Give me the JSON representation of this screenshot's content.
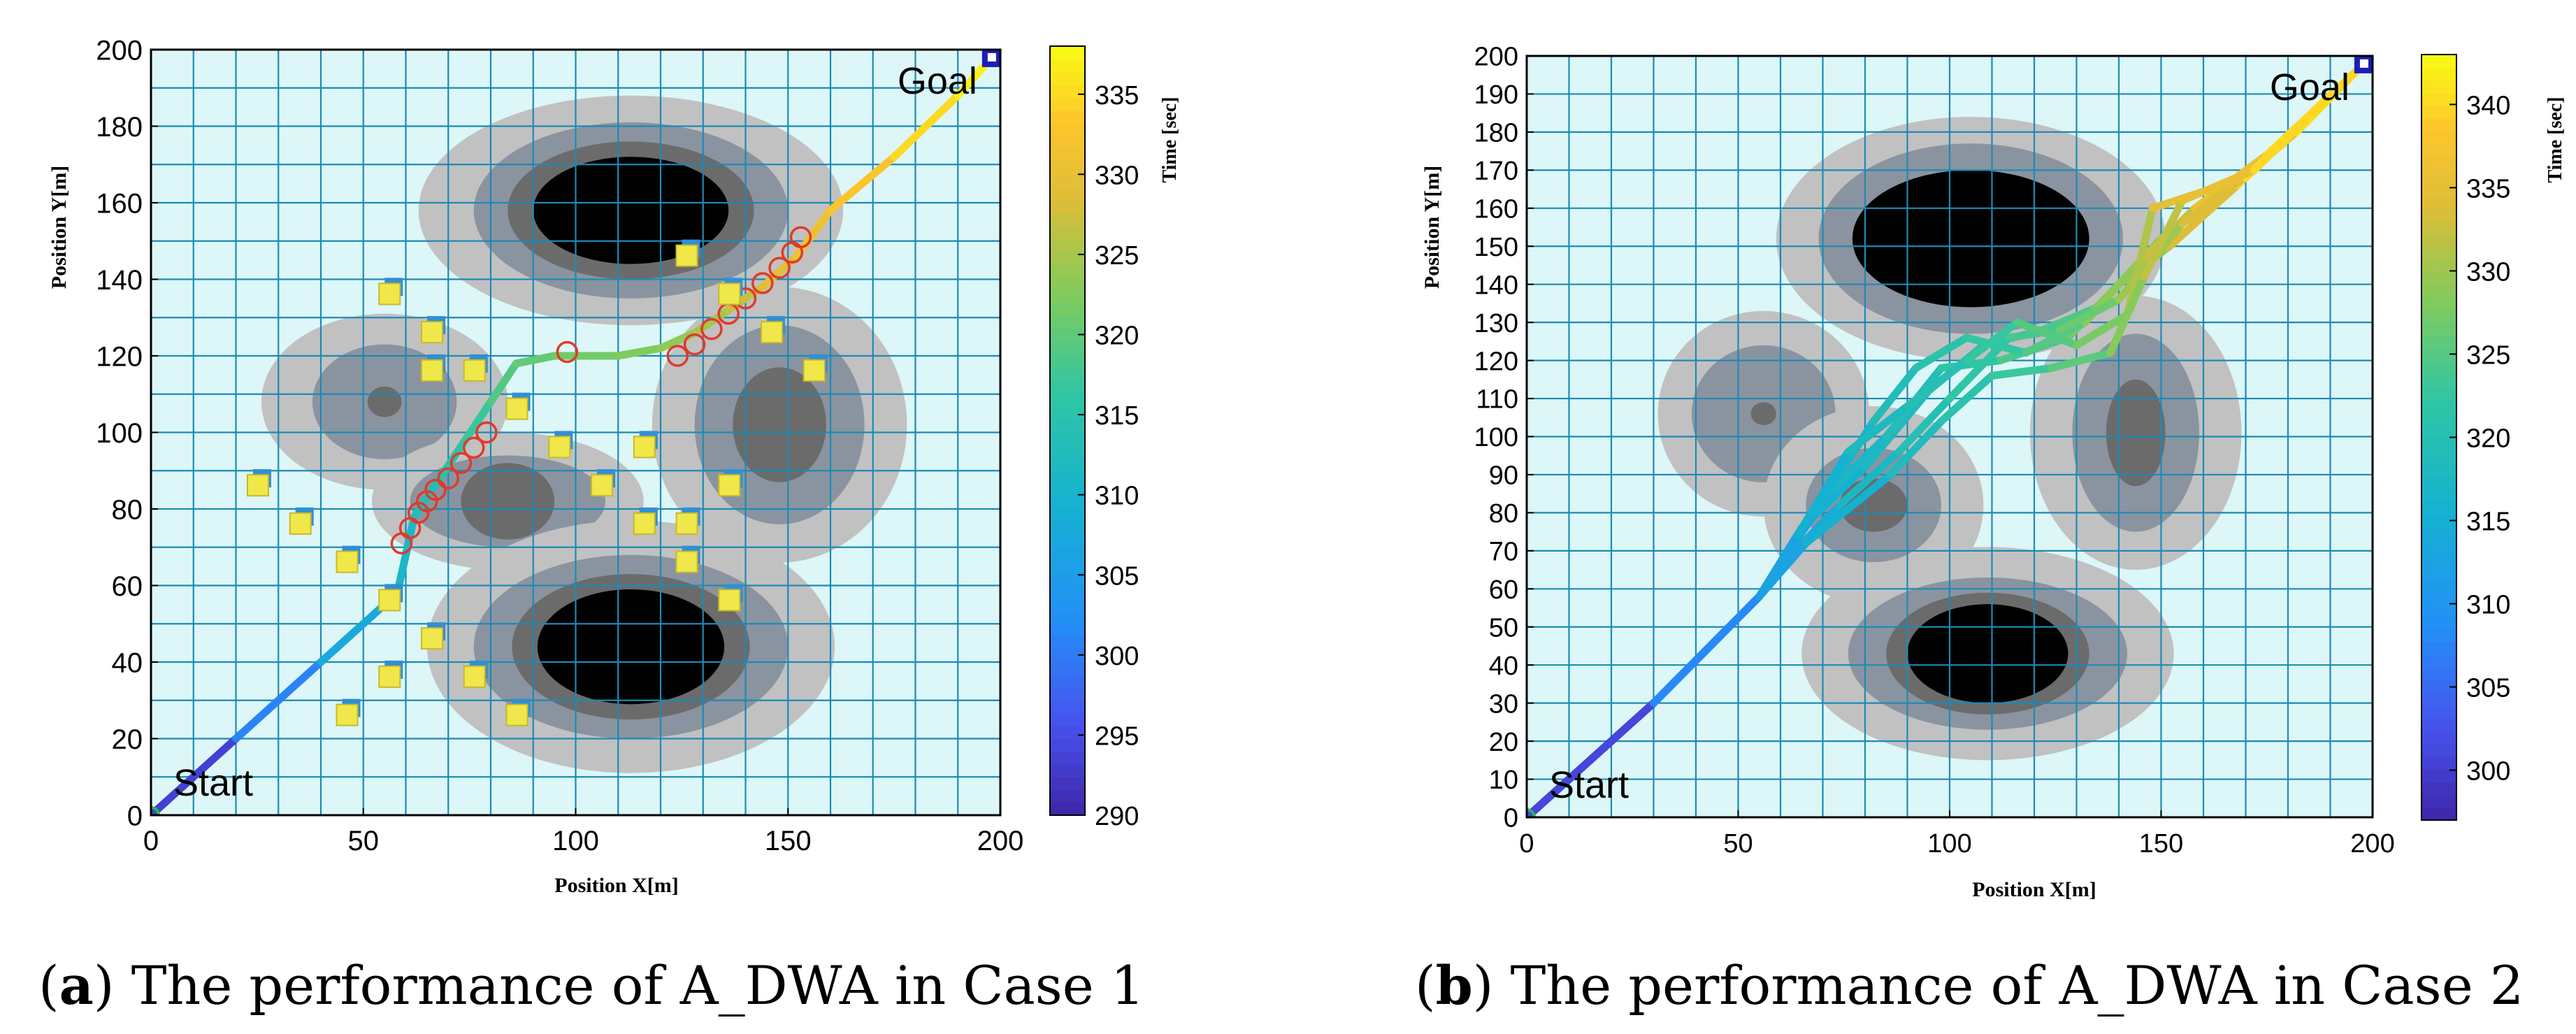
{
  "chart_data": [
    {
      "type": "line",
      "panel": "a",
      "caption_label": "a",
      "caption_text": "The performance of A_DWA in Case 1",
      "title": "",
      "xlabel": "Position X[m]",
      "ylabel": "Position Y[m]",
      "xlim": [
        0,
        200
      ],
      "ylim": [
        0,
        200
      ],
      "xticks": [
        0,
        50,
        100,
        150,
        200
      ],
      "yticks": [
        0,
        20,
        40,
        60,
        80,
        100,
        120,
        140,
        160,
        180,
        200
      ],
      "grid": true,
      "start_label": "Start",
      "goal_label": "Goal",
      "start": [
        0,
        0
      ],
      "goal": [
        198,
        198
      ],
      "colorbar": {
        "label": "Time [sec]",
        "range": [
          290,
          338
        ],
        "ticks": [
          290,
          295,
          300,
          305,
          310,
          315,
          320,
          325,
          330,
          335
        ]
      },
      "obstacles": [
        {
          "name": "upper-large",
          "x": 113,
          "y": 158,
          "levels": [
            [
              50,
              30
            ],
            [
              37,
              23
            ],
            [
              29,
              18
            ],
            [
              23,
              14
            ]
          ]
        },
        {
          "name": "left-small",
          "x": 55,
          "y": 108,
          "levels": [
            [
              29,
              23
            ],
            [
              17,
              15
            ],
            [
              4,
              4
            ]
          ]
        },
        {
          "name": "center-mid",
          "x": 84,
          "y": 82,
          "levels": [
            [
              32,
              18
            ],
            [
              23,
              12
            ],
            [
              11,
              10
            ]
          ]
        },
        {
          "name": "right-mid",
          "x": 148,
          "y": 102,
          "levels": [
            [
              30,
              36
            ],
            [
              20,
              26
            ],
            [
              11,
              15
            ]
          ]
        },
        {
          "name": "lower-large",
          "x": 113,
          "y": 44,
          "levels": [
            [
              48,
              33
            ],
            [
              37,
              24
            ],
            [
              28,
              19
            ],
            [
              22,
              15
            ]
          ]
        }
      ],
      "series": [
        {
          "name": "A_DWA path",
          "x": [
            0,
            20,
            40,
            58,
            62,
            68,
            74,
            80,
            86,
            95,
            110,
            120,
            128,
            136,
            144,
            152,
            160,
            175,
            190,
            198
          ],
          "y": [
            0,
            20,
            40,
            58,
            78,
            88,
            98,
            108,
            118,
            120,
            120,
            122,
            126,
            132,
            138,
            146,
            158,
            172,
            188,
            198
          ],
          "t": [
            290,
            297,
            305,
            310,
            312,
            314,
            316,
            318,
            320,
            321,
            322,
            323,
            324,
            326,
            328,
            330,
            332,
            334,
            336,
            338
          ]
        }
      ],
      "predicted_markers": {
        "x": [
          59,
          61,
          63,
          65,
          67,
          70,
          73,
          76,
          79,
          98,
          124,
          128,
          132,
          136,
          140,
          144,
          148,
          151,
          153
        ],
        "y": [
          71,
          75,
          79,
          82,
          85,
          88,
          92,
          96,
          100,
          121,
          120,
          123,
          127,
          131,
          135,
          139,
          143,
          147,
          151
        ]
      },
      "dynamic_obstacles": {
        "x": [
          26,
          36,
          47,
          57,
          57,
          67,
          77,
          87,
          97,
          107,
          117,
          127,
          137,
          147,
          157,
          127,
          137,
          67,
          57,
          47,
          77,
          87,
          117,
          127,
          137,
          67
        ],
        "y": [
          86,
          76,
          66,
          56,
          136,
          126,
          116,
          106,
          96,
          86,
          76,
          66,
          56,
          126,
          116,
          146,
          136,
          46,
          36,
          26,
          36,
          26,
          96,
          76,
          86,
          116
        ]
      }
    },
    {
      "type": "line",
      "panel": "b",
      "caption_label": "b",
      "caption_text": "The performance of A_DWA in Case 2",
      "title": "",
      "xlabel": "Position X[m]",
      "ylabel": "Position Y[m]",
      "xlim": [
        0,
        200
      ],
      "ylim": [
        0,
        200
      ],
      "xticks": [
        0,
        50,
        100,
        150,
        200
      ],
      "yticks": [
        0,
        10,
        20,
        30,
        40,
        50,
        60,
        70,
        80,
        90,
        100,
        110,
        120,
        130,
        140,
        150,
        160,
        170,
        180,
        190,
        200
      ],
      "grid": true,
      "start_label": "Start",
      "goal_label": "Goal",
      "start": [
        0,
        0
      ],
      "goal": [
        198,
        198
      ],
      "colorbar": {
        "label": "Time [sec]",
        "range": [
          297,
          343
        ],
        "ticks": [
          300,
          305,
          310,
          315,
          320,
          325,
          330,
          335,
          340
        ]
      },
      "obstacles": [
        {
          "name": "upper-large",
          "x": 105,
          "y": 152,
          "levels": [
            [
              46,
              32
            ],
            [
              36,
              25
            ],
            [
              28,
              18
            ]
          ]
        },
        {
          "name": "left-small",
          "x": 56,
          "y": 106,
          "levels": [
            [
              25,
              27
            ],
            [
              17,
              18
            ],
            [
              3,
              3
            ]
          ]
        },
        {
          "name": "center-mid",
          "x": 82,
          "y": 82,
          "levels": [
            [
              26,
              26
            ],
            [
              16,
              15
            ],
            [
              8,
              7
            ]
          ]
        },
        {
          "name": "right-mid",
          "x": 144,
          "y": 101,
          "levels": [
            [
              25,
              36
            ],
            [
              15,
              26
            ],
            [
              7,
              14
            ]
          ]
        },
        {
          "name": "lower-large",
          "x": 109,
          "y": 43,
          "levels": [
            [
              44,
              28
            ],
            [
              33,
              20
            ],
            [
              24,
              16
            ],
            [
              19,
              13
            ]
          ]
        }
      ],
      "series": [
        {
          "name": "trajectory-1",
          "x": [
            0,
            30,
            55,
            65,
            80,
            95,
            108,
            122,
            135,
            150,
            165,
            182,
            198
          ],
          "y": [
            0,
            30,
            58,
            76,
            92,
            112,
            124,
            128,
            134,
            152,
            164,
            180,
            198
          ],
          "t": [
            297,
            305,
            311,
            314,
            317,
            319,
            321,
            323,
            326,
            330,
            334,
            338,
            343
          ]
        },
        {
          "name": "trajectory-2",
          "x": [
            0,
            30,
            55,
            62,
            72,
            85,
            98,
            112,
            128,
            140,
            152,
            168,
            198
          ],
          "y": [
            0,
            30,
            58,
            70,
            86,
            100,
            118,
            120,
            126,
            140,
            150,
            166,
            198
          ],
          "t": [
            297,
            305,
            311,
            313,
            316,
            318,
            321,
            323,
            326,
            329,
            332,
            336,
            343
          ]
        },
        {
          "name": "trajectory-3",
          "x": [
            0,
            30,
            55,
            68,
            82,
            92,
            104,
            118,
            132,
            145,
            158,
            175,
            198
          ],
          "y": [
            0,
            30,
            58,
            80,
            104,
            118,
            126,
            122,
            130,
            146,
            160,
            174,
            198
          ],
          "t": [
            297,
            305,
            311,
            315,
            318,
            320,
            322,
            323,
            327,
            331,
            334,
            338,
            343
          ]
        },
        {
          "name": "trajectory-4",
          "x": [
            0,
            30,
            55,
            60,
            74,
            88,
            100,
            114,
            126,
            140,
            155,
            172,
            198
          ],
          "y": [
            0,
            30,
            58,
            66,
            82,
            96,
            110,
            126,
            128,
            136,
            156,
            170,
            198
          ],
          "t": [
            297,
            305,
            311,
            313,
            316,
            319,
            321,
            323,
            325,
            328,
            332,
            336,
            343
          ]
        },
        {
          "name": "trajectory-5",
          "x": [
            0,
            30,
            55,
            64,
            76,
            90,
            104,
            116,
            130,
            142,
            148,
            170,
            198
          ],
          "y": [
            0,
            30,
            58,
            74,
            96,
            108,
            120,
            130,
            124,
            132,
            160,
            168,
            198
          ],
          "t": [
            297,
            305,
            311,
            314,
            317,
            319,
            321,
            324,
            326,
            329,
            333,
            337,
            343
          ]
        },
        {
          "name": "trajectory-6",
          "x": [
            0,
            30,
            55,
            66,
            86,
            98,
            110,
            124,
            138,
            146,
            155,
            172,
            198
          ],
          "y": [
            0,
            30,
            58,
            72,
            90,
            104,
            116,
            118,
            122,
            142,
            162,
            170,
            198
          ],
          "t": [
            297,
            305,
            311,
            314,
            317,
            320,
            322,
            324,
            327,
            330,
            334,
            337,
            343
          ]
        }
      ]
    }
  ]
}
